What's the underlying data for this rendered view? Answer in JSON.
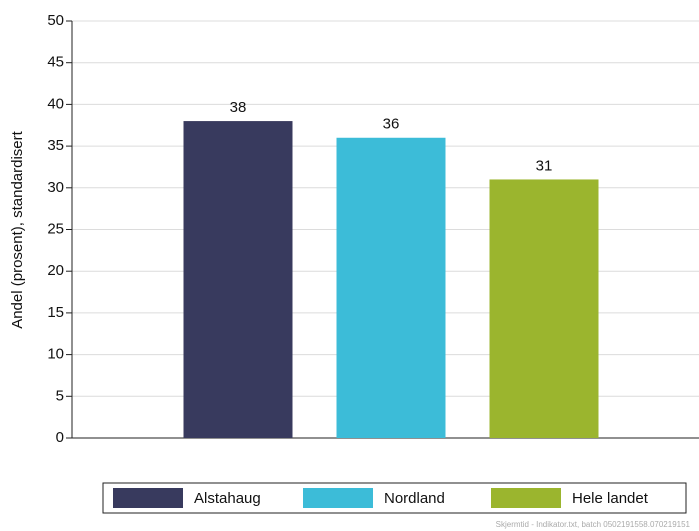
{
  "chart_data": {
    "type": "bar",
    "y_label": "Andel (prosent), standardisert",
    "categories": [
      "Alstahaug",
      "Nordland",
      "Hele landet"
    ],
    "values": [
      38,
      36,
      31
    ],
    "colors": [
      "#383a5e",
      "#3cbcd8",
      "#9bb52e"
    ],
    "ylim": [
      0,
      50
    ],
    "yticks": [
      0,
      5,
      10,
      15,
      20,
      25,
      30,
      35,
      40,
      45,
      50
    ],
    "grid": true,
    "legend": "bottom",
    "footnote": "Skjermtid - Indikator.txt, batch 0502191558.070219151"
  }
}
